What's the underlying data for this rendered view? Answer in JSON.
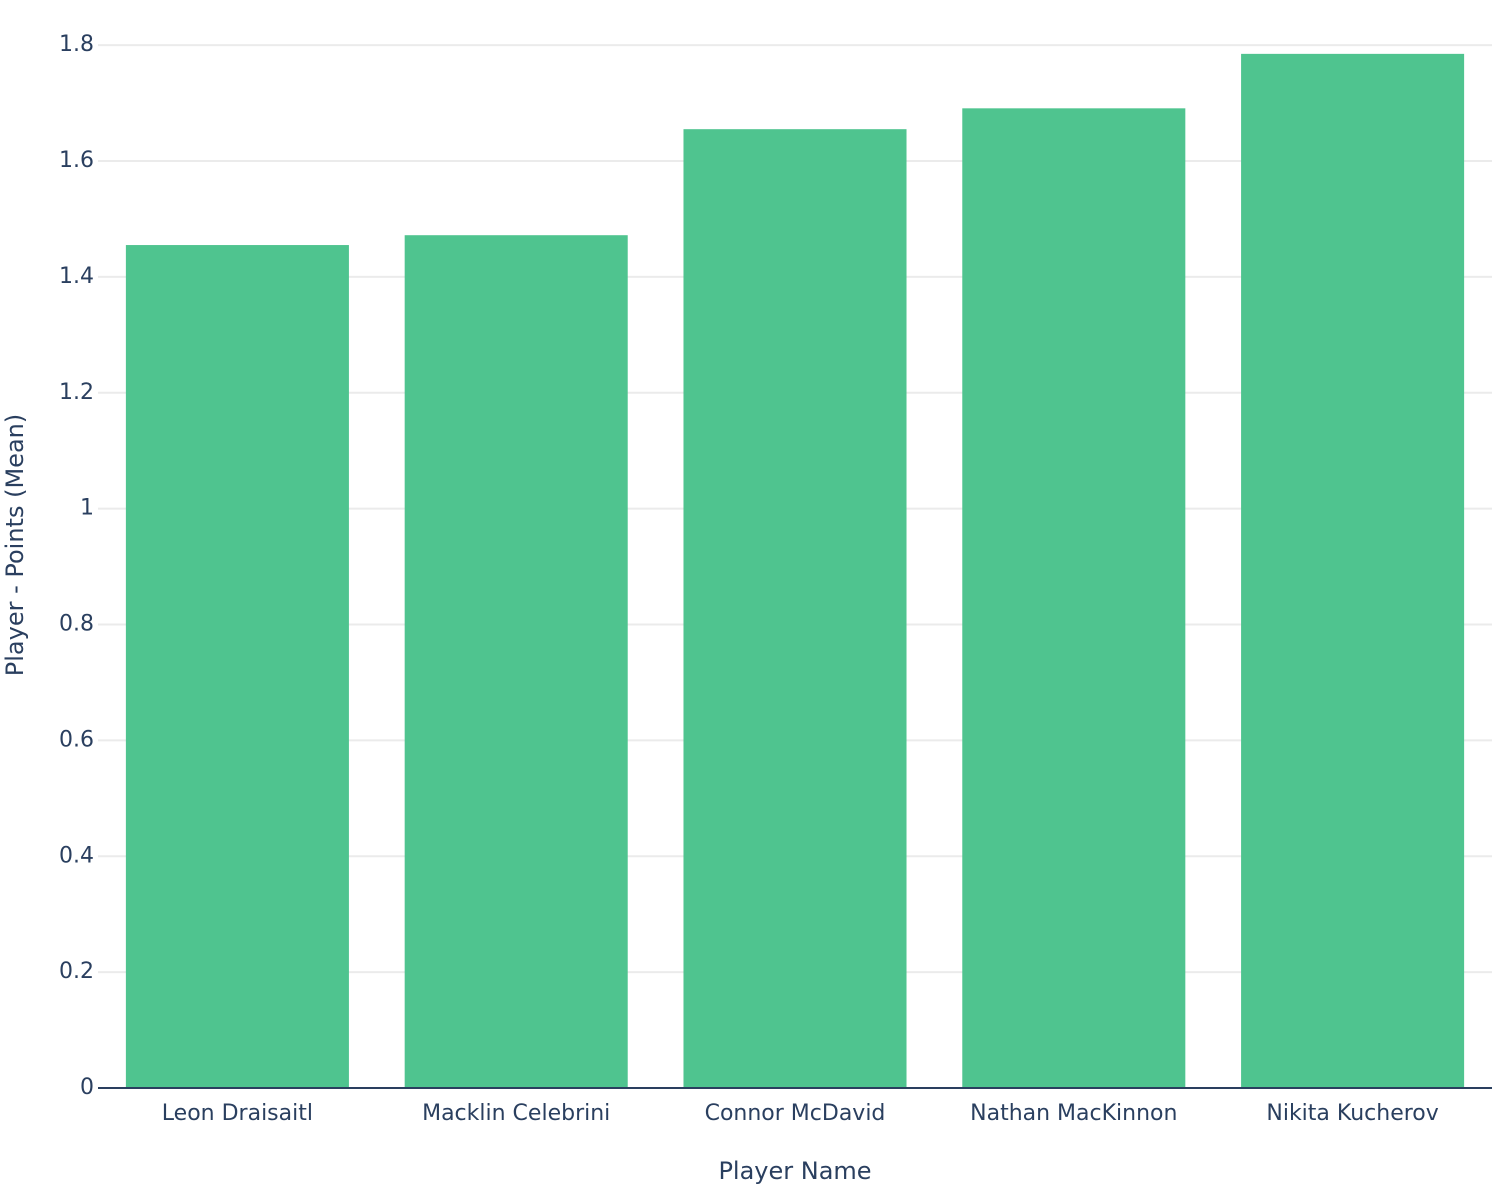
{
  "chart_data": {
    "type": "bar",
    "x_label": "Player Name",
    "y_label": "Player - Points (Mean)",
    "categories": [
      "Leon Draisaitl",
      "Macklin Celebrini",
      "Connor McDavid",
      "Nathan MacKinnon",
      "Nikita Kucherov"
    ],
    "values": [
      1.455,
      1.472,
      1.655,
      1.691,
      1.785
    ],
    "color": "#4fc48f",
    "ylim": [
      0,
      1.84
    ],
    "yticks": [
      0,
      0.2,
      0.4,
      0.6,
      0.8,
      1,
      1.2,
      1.4,
      1.6,
      1.8
    ],
    "grid": true
  }
}
